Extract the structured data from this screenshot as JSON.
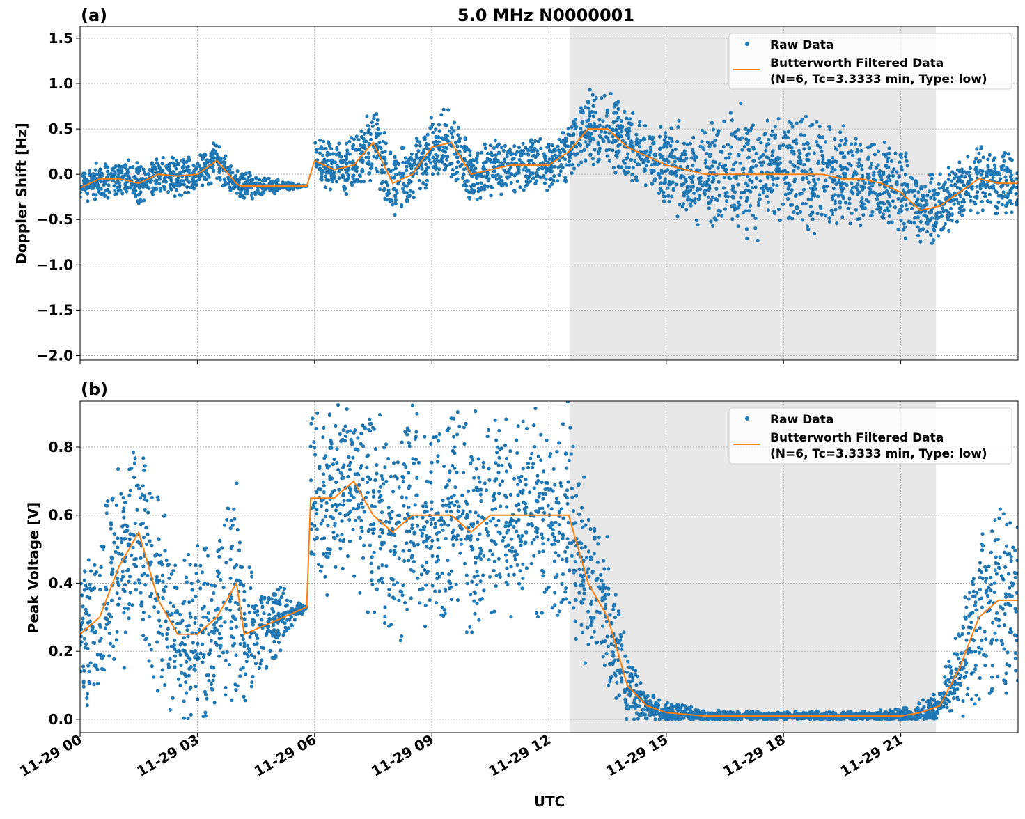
{
  "chart_data": {
    "title": "5.0 MHz N0000001",
    "xlabel": "UTC",
    "x_ticks": [
      "11-29 00",
      "11-29 03",
      "11-29 06",
      "11-29 09",
      "11-29 12",
      "11-29 15",
      "11-29 18",
      "11-29 21"
    ],
    "x_tick_hours": [
      0,
      3,
      6,
      9,
      12,
      15,
      18,
      21
    ],
    "xlim_hours": [
      0,
      24
    ],
    "shaded_region_hours": [
      12.53,
      21.9
    ],
    "grid": true,
    "legend": {
      "placement": "top-right",
      "raw": "Raw Data",
      "filtered_line1": "Butterworth Filtered Data",
      "filtered_line2": "(N=6, Tc=3.3333 min, Type: low)"
    },
    "colors": {
      "raw": "#1f77b4",
      "filtered": "#ff7f0e",
      "shade": "#e8e8e8"
    },
    "panels": [
      {
        "label": "(a)",
        "type": "scatter+line",
        "ylabel": "Doppler Shift [Hz]",
        "ylim": [
          -2.05,
          1.63
        ],
        "y_ticks": [
          1.5,
          1.0,
          0.5,
          0.0,
          -0.5,
          -1.0,
          -1.5,
          -2.0
        ],
        "y_tick_labels": [
          "1.5",
          "1.0",
          "0.5",
          "0.0",
          "−0.5",
          "−1.0",
          "−1.5",
          "−2.0"
        ],
        "filtered": {
          "t": [
            0,
            0.5,
            1,
            1.5,
            2,
            2.5,
            3,
            3.5,
            4,
            4.1,
            5.8,
            6,
            6.5,
            7,
            7.5,
            8,
            8.5,
            9,
            9.5,
            10,
            10.5,
            11,
            11.5,
            12,
            12.5,
            13,
            13.5,
            14,
            14.5,
            15,
            15.5,
            16,
            16.5,
            17,
            17.5,
            18,
            18.5,
            19,
            19.5,
            20,
            20.5,
            21,
            21.5,
            22,
            22.5,
            23,
            23.5,
            24
          ],
          "y": [
            -0.15,
            -0.05,
            -0.05,
            -0.1,
            0,
            -0.02,
            0,
            0.15,
            -0.1,
            -0.13,
            -0.13,
            0.15,
            0.05,
            0.1,
            0.35,
            -0.1,
            0,
            0.3,
            0.35,
            0,
            0.05,
            0.1,
            0.1,
            0.1,
            0.25,
            0.5,
            0.5,
            0.3,
            0.2,
            0.1,
            0.05,
            0,
            0,
            0,
            0,
            0,
            0,
            0,
            -0.05,
            -0.05,
            -0.1,
            -0.2,
            -0.4,
            -0.35,
            -0.2,
            -0.05,
            -0.1,
            -0.1
          ]
        },
        "raw_spread": [
          0.2,
          0.2,
          0.2,
          0.2,
          0.2,
          0.2,
          0.2,
          0.2,
          0.15,
          0.15,
          0,
          0.25,
          0.25,
          0.3,
          0.4,
          0.35,
          0.3,
          0.35,
          0.35,
          0.3,
          0.3,
          0.3,
          0.3,
          0.25,
          0.35,
          0.4,
          0.4,
          0.35,
          0.35,
          0.4,
          0.5,
          0.55,
          0.6,
          0.7,
          0.6,
          0.6,
          0.6,
          0.55,
          0.5,
          0.45,
          0.45,
          0.45,
          0.4,
          0.35,
          0.35,
          0.35,
          0.35,
          0.35
        ]
      },
      {
        "label": "(b)",
        "type": "scatter+line",
        "ylabel": "Peak Voltage [V]",
        "ylim": [
          -0.039,
          0.935
        ],
        "y_ticks": [
          0.0,
          0.2,
          0.4,
          0.6,
          0.8
        ],
        "y_tick_labels": [
          "0.0",
          "0.2",
          "0.4",
          "0.6",
          "0.8"
        ],
        "filtered": {
          "t": [
            0,
            0.5,
            1,
            1.5,
            2,
            2.5,
            3,
            3.5,
            4,
            4.2,
            5.8,
            5.9,
            6.5,
            7,
            7.5,
            8,
            8.5,
            9,
            9.5,
            10,
            10.5,
            11,
            11.5,
            12,
            12.5,
            13,
            13.5,
            14,
            14.5,
            15,
            16,
            17,
            18,
            19,
            20,
            21,
            21.5,
            22,
            22.5,
            23,
            23.5,
            24
          ],
          "y": [
            0.25,
            0.3,
            0.45,
            0.55,
            0.35,
            0.25,
            0.25,
            0.3,
            0.4,
            0.25,
            0.33,
            0.65,
            0.65,
            0.7,
            0.6,
            0.55,
            0.6,
            0.6,
            0.6,
            0.55,
            0.6,
            0.6,
            0.6,
            0.6,
            0.6,
            0.4,
            0.3,
            0.1,
            0.04,
            0.02,
            0.01,
            0.01,
            0.01,
            0.01,
            0.01,
            0.01,
            0.02,
            0.04,
            0.15,
            0.3,
            0.35,
            0.35
          ]
        },
        "raw_spread": [
          0.2,
          0.25,
          0.3,
          0.3,
          0.3,
          0.25,
          0.25,
          0.3,
          0.3,
          0.2,
          0,
          0.25,
          0.25,
          0.25,
          0.3,
          0.3,
          0.3,
          0.3,
          0.3,
          0.3,
          0.3,
          0.3,
          0.3,
          0.3,
          0.28,
          0.25,
          0.2,
          0.1,
          0.04,
          0.03,
          0.015,
          0.012,
          0.012,
          0.012,
          0.012,
          0.02,
          0.03,
          0.05,
          0.12,
          0.25,
          0.25,
          0.25
        ]
      }
    ]
  }
}
